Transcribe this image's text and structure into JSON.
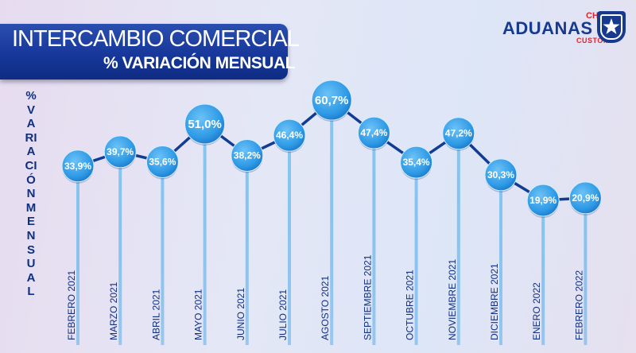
{
  "title": {
    "main": "INTERCAMBIO COMERCIAL",
    "sub": "% VARIACIÓN MENSUAL"
  },
  "logo": {
    "top": "CHILE",
    "main": "ADUANAS",
    "bottom": "CUSTOMS",
    "badge_icon": "star-shield-icon"
  },
  "colors": {
    "line": "#123c92",
    "bubble": "#2f9ae6",
    "label": "#0f2f7f",
    "title_bg": "#17389a"
  },
  "chart_data": {
    "type": "line",
    "ylabel": "%VARIACIÓNMENSUAL",
    "xlabel": "",
    "categories": [
      "FEBRERO 2021",
      "MARZO 2021",
      "ABRIL 2021",
      "MAYO 2021",
      "JUNIO 2021",
      "JULIO 2021",
      "AGOSTO 2021",
      "SEPTIEMBRE 2021",
      "OCTUBRE 2021",
      "NOVIEMBRE 2021",
      "DICIEMBRE 2021",
      "ENERO 2022",
      "FEBRERO 2022"
    ],
    "values": [
      33.9,
      39.7,
      35.6,
      51.0,
      38.2,
      46.4,
      60.7,
      47.4,
      35.4,
      47.2,
      30.3,
      19.9,
      20.9
    ],
    "value_labels": [
      "33,9%",
      "39,7%",
      "35,6%",
      "51,0%",
      "38,2%",
      "46,4%",
      "60,7%",
      "47,4%",
      "35,4%",
      "47,2%",
      "30,3%",
      "19,9%",
      "20,9%"
    ],
    "emphasized_categories": [
      "MAYO 2021",
      "AGOSTO 2021"
    ]
  }
}
